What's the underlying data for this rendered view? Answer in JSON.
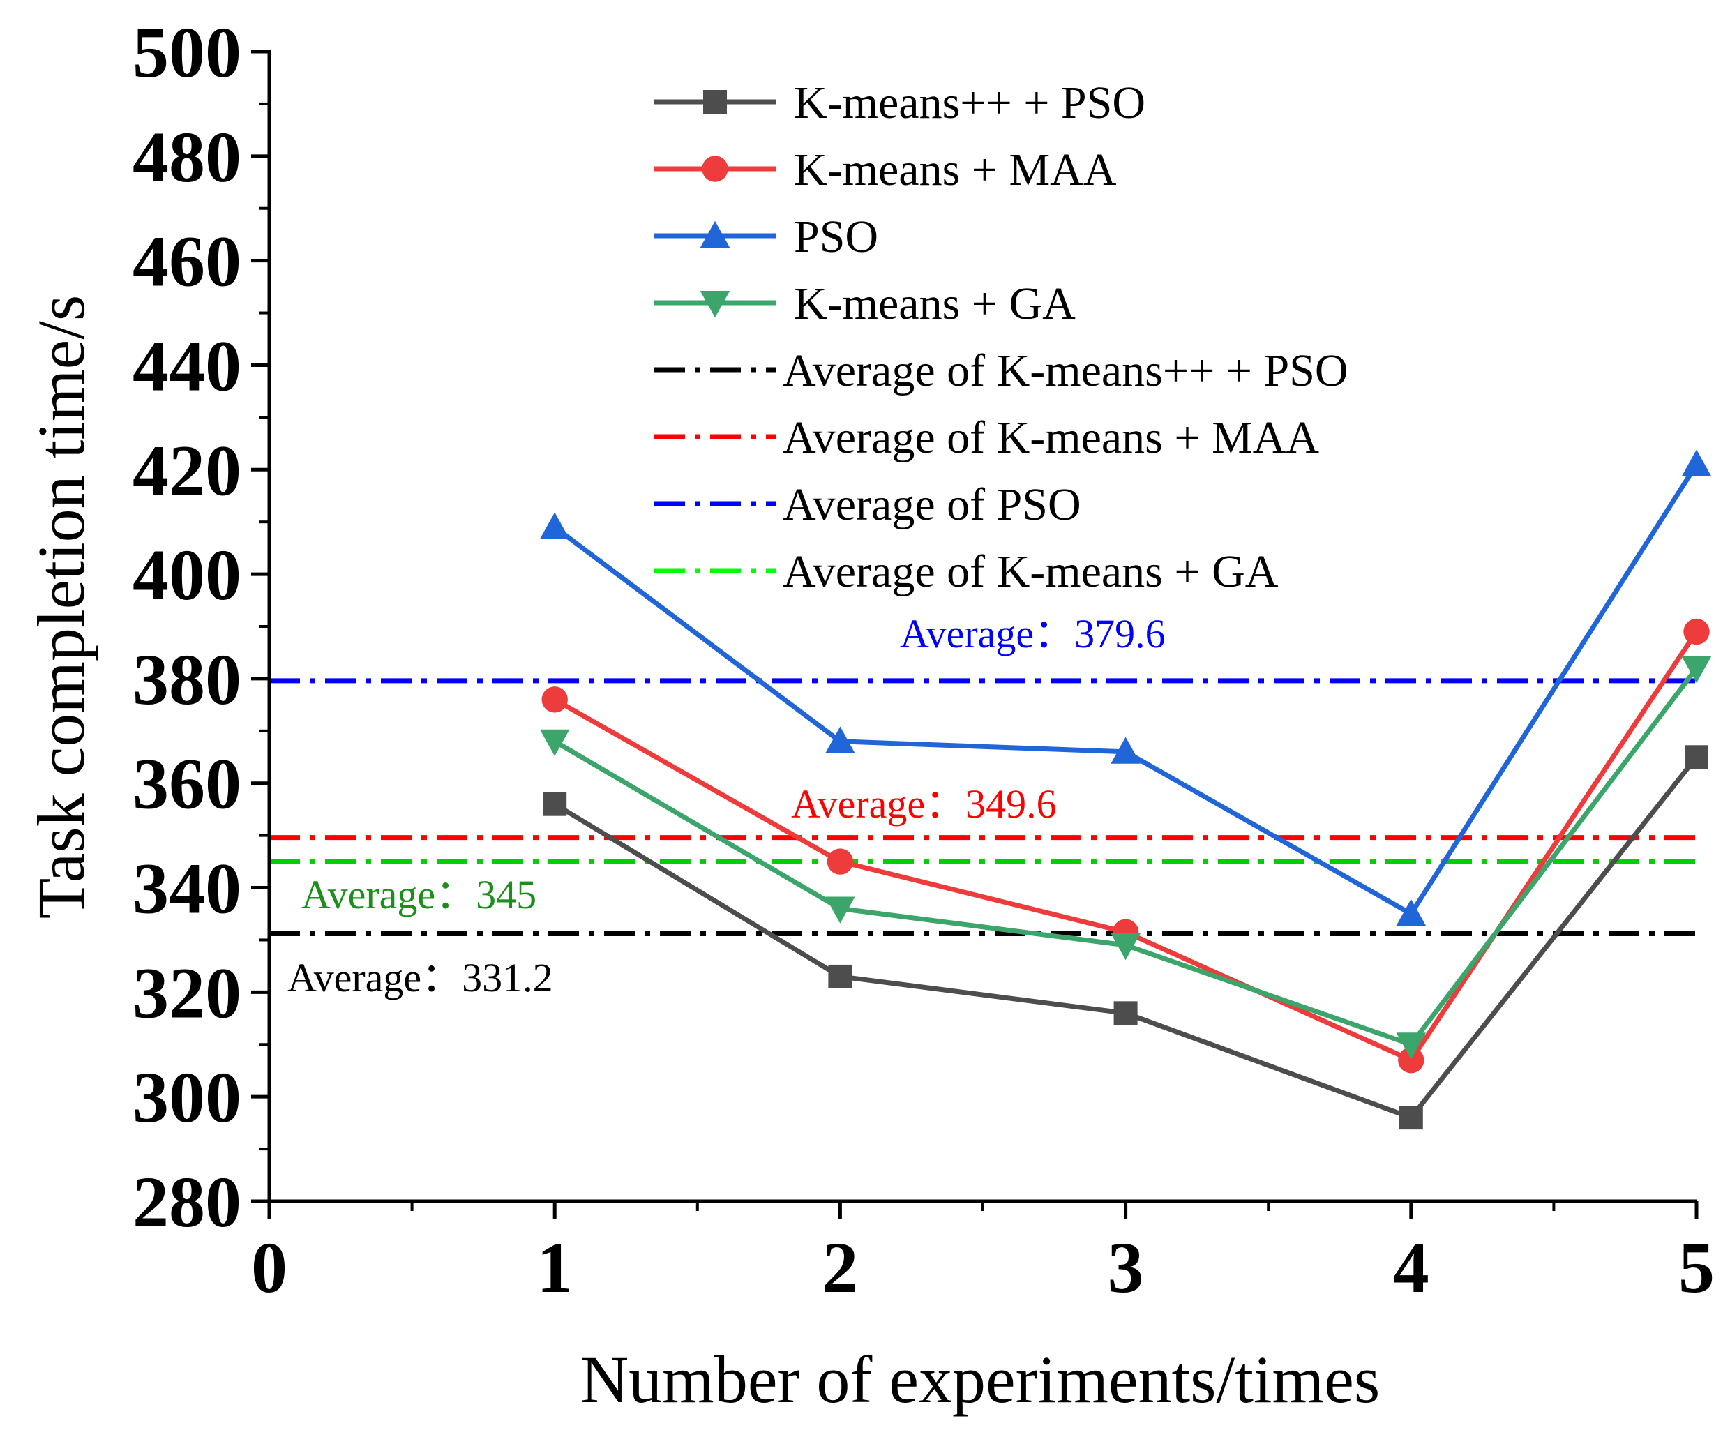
{
  "chart_data": {
    "type": "line",
    "xlabel": "Number of experiments/times",
    "ylabel": "Task completion time/s",
    "xlim": [
      0,
      5
    ],
    "ylim": [
      280,
      500
    ],
    "x_ticks": [
      0,
      1,
      2,
      3,
      4,
      5
    ],
    "y_ticks": [
      280,
      300,
      320,
      340,
      360,
      380,
      400,
      420,
      440,
      460,
      480,
      500
    ],
    "legend_position": "top",
    "x": [
      1,
      2,
      3,
      4,
      5
    ],
    "series": [
      {
        "name": "K-means++ + PSO",
        "values": [
          356,
          323,
          316,
          296,
          365
        ],
        "color": "#4d4d4d",
        "marker": "square"
      },
      {
        "name": "K-means + MAA",
        "values": [
          376,
          345,
          331.5,
          307,
          389
        ],
        "color": "#ee3b3b",
        "marker": "circle"
      },
      {
        "name": "PSO",
        "values": [
          409,
          368,
          366,
          335,
          421
        ],
        "color": "#2166d8",
        "marker": "triangle-up"
      },
      {
        "name": "K-means + GA",
        "values": [
          368,
          336,
          329,
          310,
          382
        ],
        "color": "#3ba56b",
        "marker": "triangle-down"
      }
    ],
    "averages": [
      {
        "name": "Average of K-means++ + PSO",
        "value": 331.2,
        "line_color": "#000000",
        "label": "Average：331.2",
        "label_color": "#000000"
      },
      {
        "name": "Average of K-means + MAA",
        "value": 349.6,
        "line_color": "#ff0000",
        "label": "Average：349.6",
        "label_color": "#ff0000"
      },
      {
        "name": "Average of PSO",
        "value": 379.6,
        "line_color": "#0000ff",
        "label": "Average：379.6",
        "label_color": "#0000ff"
      },
      {
        "name": "Average of K-means + GA",
        "value": 345,
        "line_color": "#00d000",
        "legend_color": "#00ff00",
        "label": "Average：345",
        "label_color": "#1a8f1a"
      }
    ]
  }
}
